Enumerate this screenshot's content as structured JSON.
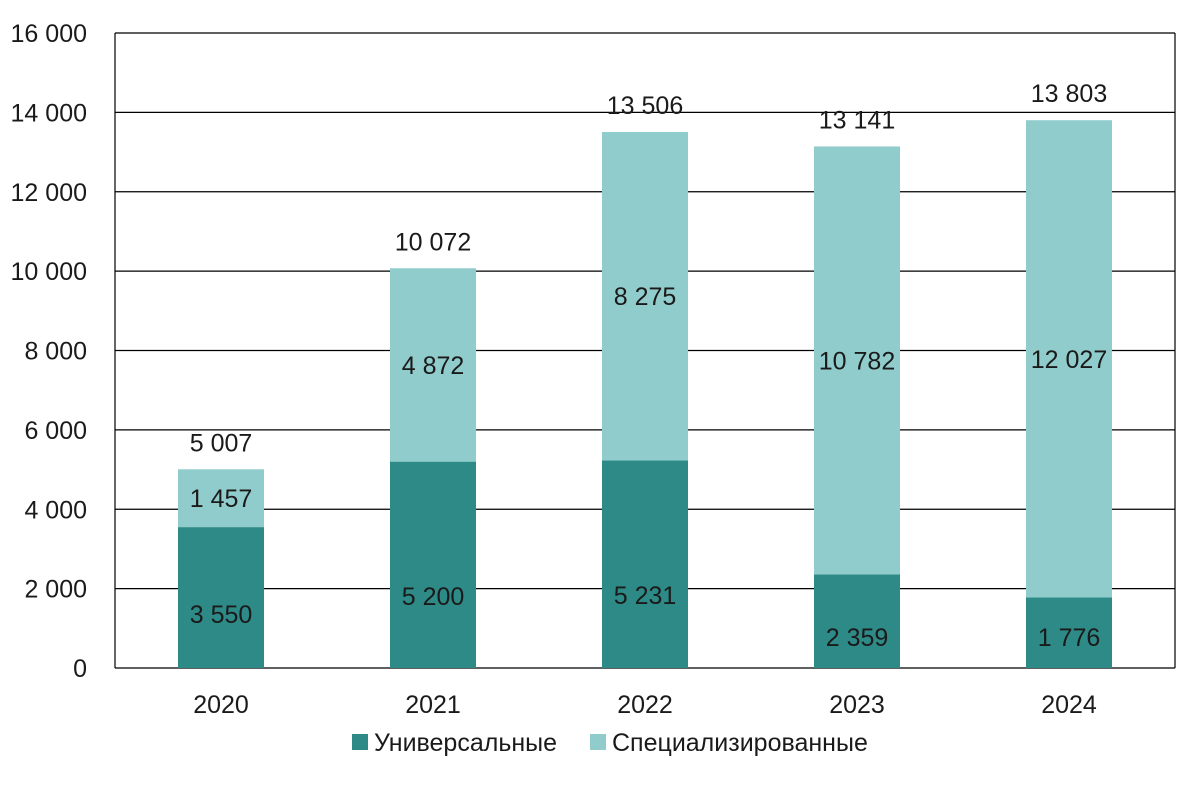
{
  "chart_data": {
    "type": "bar",
    "stacked": true,
    "categories": [
      "2020",
      "2021",
      "2022",
      "2023",
      "2024"
    ],
    "series": [
      {
        "name": "Универсальные",
        "values": [
          3550,
          5200,
          5231,
          2359,
          1776
        ],
        "color": "#2e8a87",
        "labels": [
          "3 550",
          "5 200",
          "5 231",
          "2 359",
          "1 776"
        ]
      },
      {
        "name": "Специализированные",
        "values": [
          1457,
          4872,
          8275,
          10782,
          12027
        ],
        "color": "#91cccc",
        "labels": [
          "1 457",
          "4 872",
          "8 275",
          "10 782",
          "12 027"
        ]
      }
    ],
    "totals": [
      5007,
      10072,
      13506,
      13141,
      13803
    ],
    "total_labels": [
      "5 007",
      "10 072",
      "13 506",
      "13 141",
      "13 803"
    ],
    "ylim": [
      0,
      16000
    ],
    "yticks": [
      0,
      2000,
      4000,
      6000,
      8000,
      10000,
      12000,
      14000,
      16000
    ],
    "ytick_labels": [
      "0",
      "2 000",
      "4 000",
      "6 000",
      "8 000",
      "10 000",
      "12 000",
      "14 000",
      "16 000"
    ],
    "grid": true,
    "legend_position": "bottom",
    "title": "",
    "xlabel": "",
    "ylabel": ""
  }
}
